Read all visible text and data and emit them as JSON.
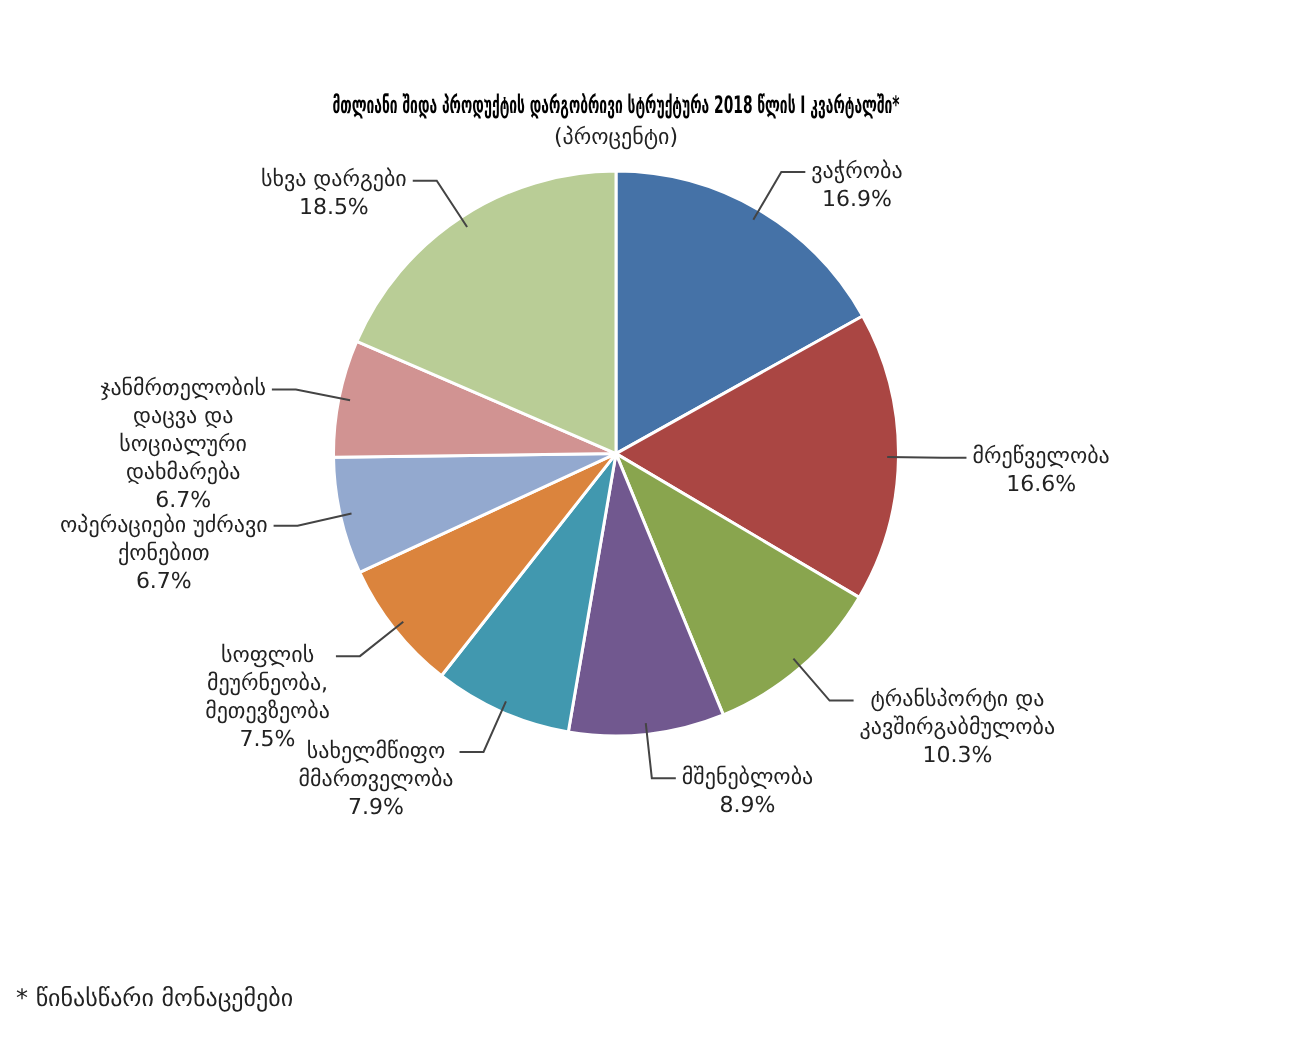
{
  "chart_data": {
    "type": "pie",
    "title": "მთლიანი შიდა პროდუქტის დარგობრივი სტრუქტურა 2018 წლის I კვარტალში*",
    "subtitle": "(პროცენტი)",
    "categories": [
      "ვაჭრობა",
      "მრეწველობა",
      "ტრანსპორტი და კავშირგაბმულობა",
      "მშენებლობა",
      "სახელმწიფო მმართველობა",
      "სოფლის მეურნეობა, მეთევზეობა",
      "ოპერაციები უძრავი ქონებით",
      "ჯანმრთელობის დაცვა და სოციალური დახმარება",
      "სხვა დარგები"
    ],
    "values": [
      16.9,
      16.6,
      10.3,
      8.9,
      7.9,
      7.5,
      6.7,
      6.7,
      18.5
    ],
    "colors": [
      "#4572a7",
      "#aa4643",
      "#89a54e",
      "#71588f",
      "#4198af",
      "#db843d",
      "#93a9cf",
      "#d19392",
      "#b9cd96"
    ],
    "value_labels": [
      "16.9%",
      "16.6%",
      "10.3%",
      "8.9%",
      "7.9%",
      "7.5%",
      "6.7%",
      "6.7%",
      "18.5%"
    ],
    "legend": false,
    "annotations": [
      "* წინასწარი მონაცემები"
    ]
  }
}
